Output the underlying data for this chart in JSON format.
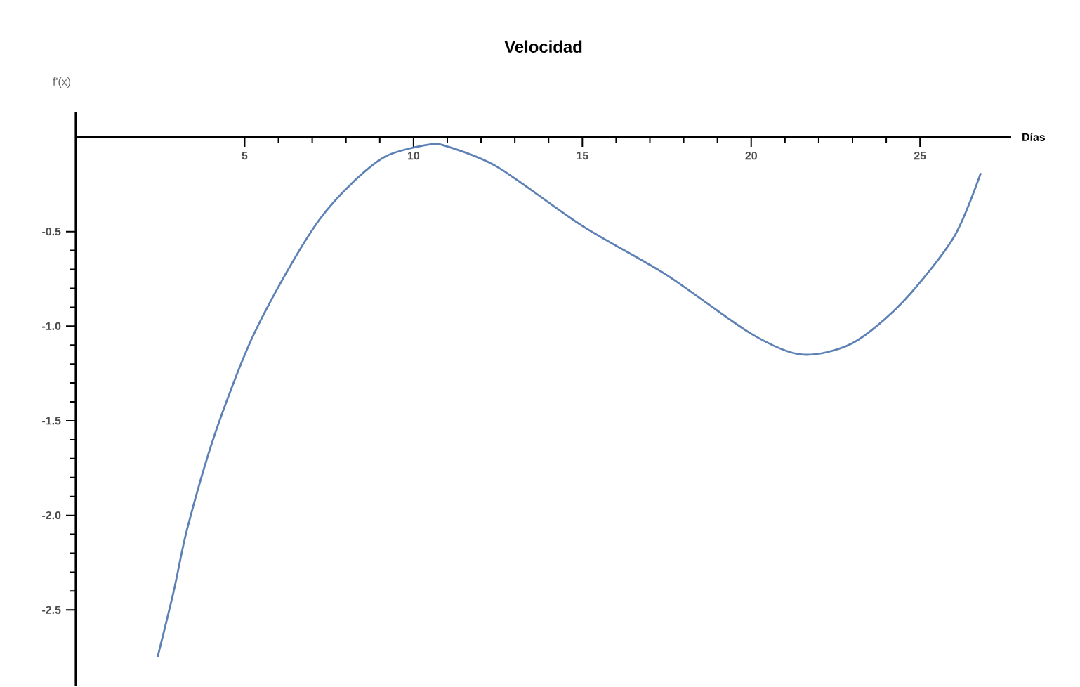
{
  "chart_data": {
    "type": "line",
    "title": "Velocidad",
    "xlabel": "Días",
    "ylabel": "f'(x)",
    "x": [
      2.42,
      2.9,
      3.3,
      4.1,
      5.1,
      6.1,
      7.2,
      8.2,
      9.2,
      10.45,
      11.0,
      12.5,
      15.0,
      17.5,
      20.0,
      21.5,
      23.0,
      24.5,
      26.0,
      26.8
    ],
    "values": [
      -2.75,
      -2.4,
      -2.07,
      -1.58,
      -1.11,
      -0.76,
      -0.44,
      -0.24,
      -0.1,
      -0.04,
      -0.05,
      -0.16,
      -0.47,
      -0.73,
      -1.04,
      -1.15,
      -1.09,
      -0.87,
      -0.53,
      -0.19
    ],
    "color": "#5e81b5",
    "xlim": [
      0,
      27.7
    ],
    "ylim": [
      -2.9,
      0.13
    ],
    "xticks": [
      5,
      10,
      15,
      20,
      25
    ],
    "yticks": [
      -2.5,
      {
        "value": -2.0,
        "label": "-2.0"
      },
      -1.5,
      {
        "value": -1.0,
        "label": "-1.0"
      },
      -0.5
    ]
  }
}
